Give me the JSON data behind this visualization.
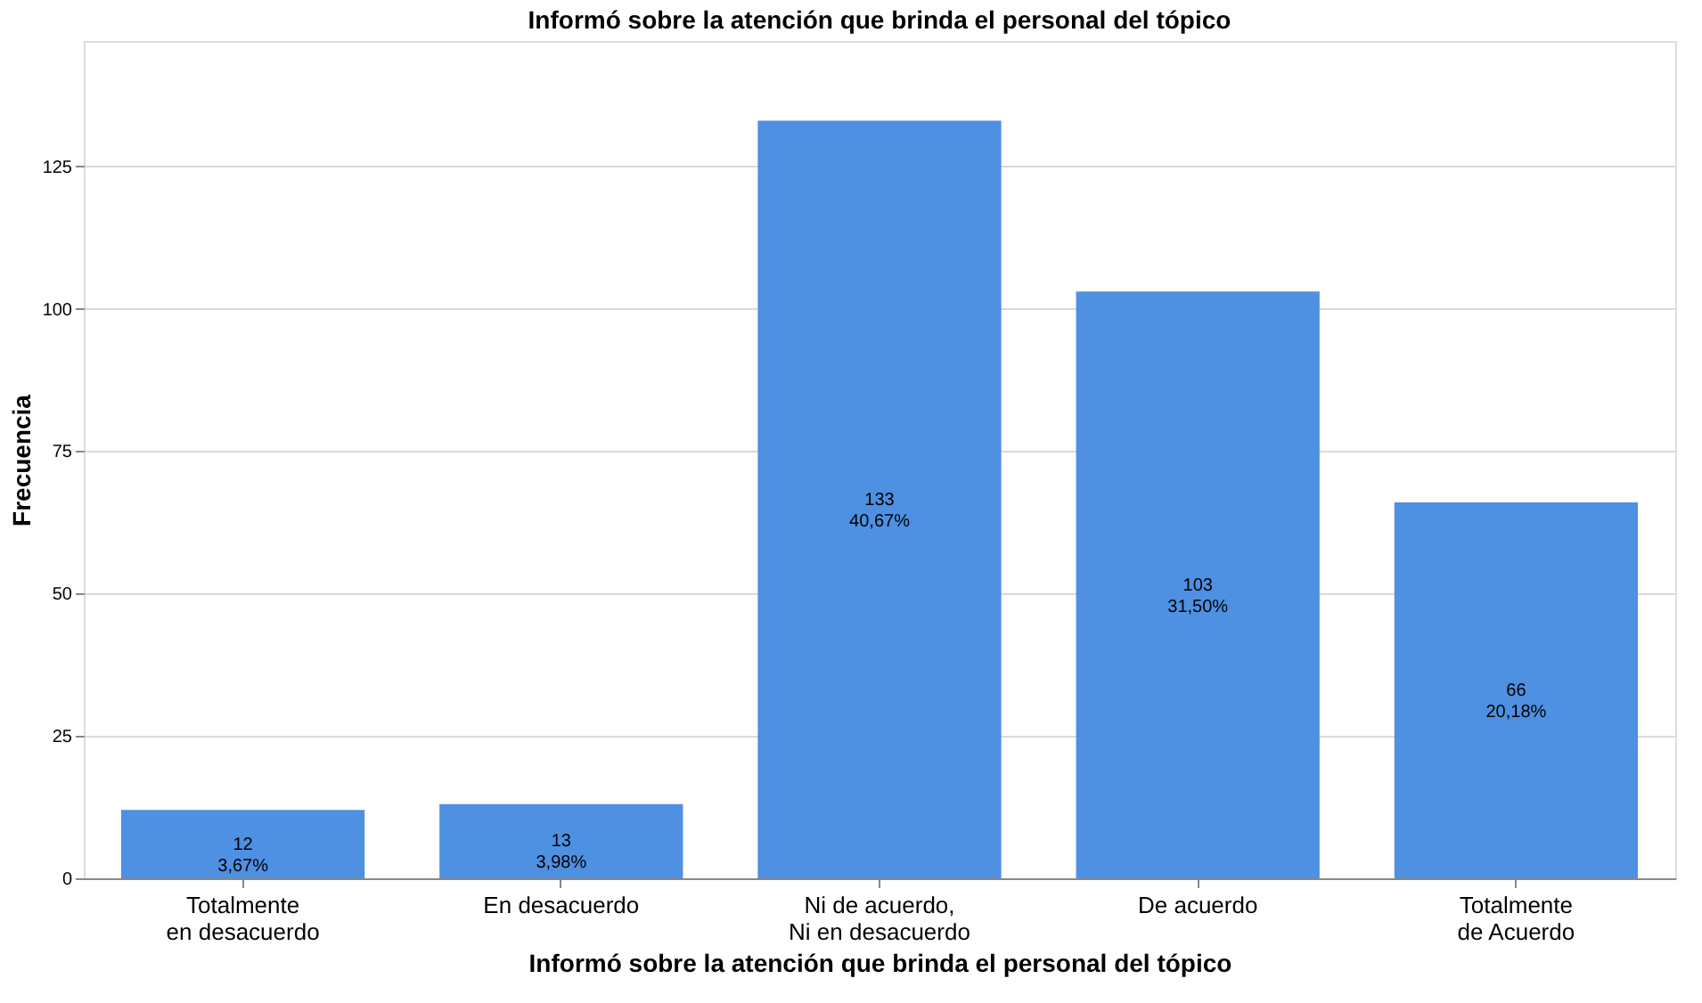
{
  "chart_data": {
    "type": "bar",
    "title": "Informó sobre la atención que brinda el personal del tópico",
    "xlabel": "Informó sobre la atención que brinda el personal del tópico",
    "ylabel": "Frecuencia",
    "categories": [
      "Totalmente en desacuerdo",
      "En desacuerdo",
      "Ni de acuerdo, Ni en desacuerdo",
      "De acuerdo",
      "Totalmente de Acuerdo"
    ],
    "values": [
      12,
      13,
      133,
      103,
      66
    ],
    "color": "#4e90e2",
    "value_labels": [
      "12\n3,67%",
      "13\n3,98%",
      "133\n40,67%",
      "103\n31,50%",
      "66\n20,18%"
    ],
    "ylim": [
      0,
      147
    ],
    "yticks": [
      0,
      25,
      50,
      75,
      100,
      125
    ],
    "grid": "y"
  }
}
